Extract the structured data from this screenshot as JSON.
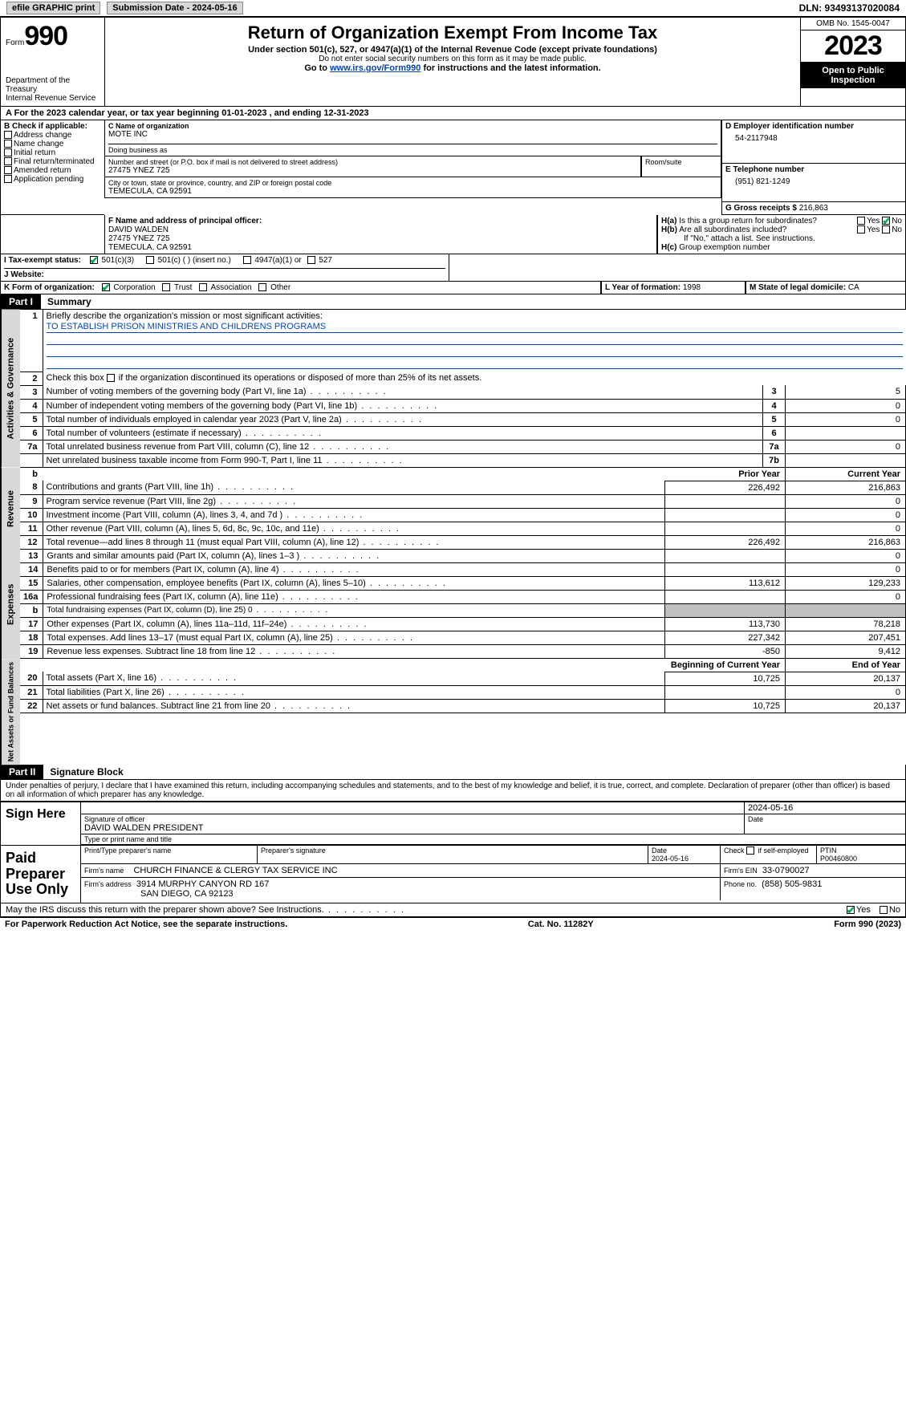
{
  "top": {
    "efile": "efile GRAPHIC print",
    "submission": "Submission Date - 2024-05-16",
    "dln": "DLN: 93493137020084"
  },
  "header": {
    "form_label": "Form",
    "form_number": "990",
    "dept": "Department of the Treasury",
    "irs": "Internal Revenue Service",
    "title": "Return of Organization Exempt From Income Tax",
    "subtitle": "Under section 501(c), 527, or 4947(a)(1) of the Internal Revenue Code (except private foundations)",
    "note1": "Do not enter social security numbers on this form as it may be made public.",
    "note2_pre": "Go to ",
    "note2_link": "www.irs.gov/Form990",
    "note2_post": " for instructions and the latest information.",
    "omb": "OMB No. 1545-0047",
    "year": "2023",
    "open": "Open to Public Inspection"
  },
  "A": {
    "text": "For the 2023 calendar year, or tax year beginning 01-01-2023    , and ending 12-31-2023"
  },
  "B": {
    "label": "B Check if applicable:",
    "items": [
      "Address change",
      "Name change",
      "Initial return",
      "Final return/terminated",
      "Amended return",
      "Application pending"
    ]
  },
  "C": {
    "name_label": "C Name of organization",
    "name": "MOTE INC",
    "dba_label": "Doing business as",
    "street_label": "Number and street (or P.O. box if mail is not delivered to street address)",
    "room_label": "Room/suite",
    "street": "27475 YNEZ 725",
    "city_label": "City or town, state or province, country, and ZIP or foreign postal code",
    "city": "TEMECULA, CA  92591"
  },
  "D": {
    "label": "D Employer identification number",
    "value": "54-2117948"
  },
  "E": {
    "label": "E Telephone number",
    "value": "(951) 821-1249"
  },
  "G": {
    "label": "G Gross receipts $",
    "value": "216,863"
  },
  "F": {
    "label": "F  Name and address of principal officer:",
    "name": "DAVID WALDEN",
    "street": "27475 YNEZ 725",
    "city": "TEMECULA, CA  92591"
  },
  "H": {
    "a_label": "H(a)  Is this a group return for subordinates?",
    "b_label": "H(b)  Are all subordinates included?",
    "b_note": "If \"No,\" attach a list. See instructions.",
    "c_label": "H(c)  Group exemption number"
  },
  "I": {
    "label": "I   Tax-exempt status:",
    "opts": [
      "501(c)(3)",
      "501(c) (  ) (insert no.)",
      "4947(a)(1) or",
      "527"
    ]
  },
  "J": {
    "label": "J   Website:"
  },
  "K": {
    "label": "K Form of organization:",
    "opts": [
      "Corporation",
      "Trust",
      "Association",
      "Other"
    ]
  },
  "L": {
    "label": "L Year of formation:",
    "value": "1998"
  },
  "M": {
    "label": "M State of legal domicile:",
    "value": "CA"
  },
  "part1": {
    "label": "Part I",
    "title": "Summary",
    "q1": "Briefly describe the organization's mission or most significant activities:",
    "mission": "TO ESTABLISH PRISON MINISTRIES AND CHILDRENS PROGRAMS",
    "q2": "Check this box      if the organization discontinued its operations or disposed of more than 25% of its net assets.",
    "lines_gov": [
      {
        "n": "3",
        "d": "Number of voting members of the governing body (Part VI, line 1a)",
        "box": "3",
        "v": "5"
      },
      {
        "n": "4",
        "d": "Number of independent voting members of the governing body (Part VI, line 1b)",
        "box": "4",
        "v": "0"
      },
      {
        "n": "5",
        "d": "Total number of individuals employed in calendar year 2023 (Part V, line 2a)",
        "box": "5",
        "v": "0"
      },
      {
        "n": "6",
        "d": "Total number of volunteers (estimate if necessary)",
        "box": "6",
        "v": ""
      },
      {
        "n": "7a",
        "d": "Total unrelated business revenue from Part VIII, column (C), line 12",
        "box": "7a",
        "v": "0"
      },
      {
        "n": "",
        "d": "Net unrelated business taxable income from Form 990-T, Part I, line 11",
        "box": "7b",
        "v": ""
      }
    ],
    "col_prior": "Prior Year",
    "col_current": "Current Year",
    "lines_rev": [
      {
        "n": "8",
        "d": "Contributions and grants (Part VIII, line 1h)",
        "p": "226,492",
        "c": "216,863"
      },
      {
        "n": "9",
        "d": "Program service revenue (Part VIII, line 2g)",
        "p": "",
        "c": "0"
      },
      {
        "n": "10",
        "d": "Investment income (Part VIII, column (A), lines 3, 4, and 7d )",
        "p": "",
        "c": "0"
      },
      {
        "n": "11",
        "d": "Other revenue (Part VIII, column (A), lines 5, 6d, 8c, 9c, 10c, and 11e)",
        "p": "",
        "c": "0"
      },
      {
        "n": "12",
        "d": "Total revenue—add lines 8 through 11 (must equal Part VIII, column (A), line 12)",
        "p": "226,492",
        "c": "216,863"
      }
    ],
    "lines_exp": [
      {
        "n": "13",
        "d": "Grants and similar amounts paid (Part IX, column (A), lines 1–3 )",
        "p": "",
        "c": "0"
      },
      {
        "n": "14",
        "d": "Benefits paid to or for members (Part IX, column (A), line 4)",
        "p": "",
        "c": "0"
      },
      {
        "n": "15",
        "d": "Salaries, other compensation, employee benefits (Part IX, column (A), lines 5–10)",
        "p": "113,612",
        "c": "129,233"
      },
      {
        "n": "16a",
        "d": "Professional fundraising fees (Part IX, column (A), line 11e)",
        "p": "",
        "c": "0"
      },
      {
        "n": "b",
        "d": "Total fundraising expenses (Part IX, column (D), line 25) 0",
        "p": "GREY",
        "c": "GREY"
      },
      {
        "n": "17",
        "d": "Other expenses (Part IX, column (A), lines 11a–11d, 11f–24e)",
        "p": "113,730",
        "c": "78,218"
      },
      {
        "n": "18",
        "d": "Total expenses. Add lines 13–17 (must equal Part IX, column (A), line 25)",
        "p": "227,342",
        "c": "207,451"
      },
      {
        "n": "19",
        "d": "Revenue less expenses. Subtract line 18 from line 12",
        "p": "-850",
        "c": "9,412"
      }
    ],
    "col_begin": "Beginning of Current Year",
    "col_end": "End of Year",
    "lines_net": [
      {
        "n": "20",
        "d": "Total assets (Part X, line 16)",
        "p": "10,725",
        "c": "20,137"
      },
      {
        "n": "21",
        "d": "Total liabilities (Part X, line 26)",
        "p": "",
        "c": "0"
      },
      {
        "n": "22",
        "d": "Net assets or fund balances. Subtract line 21 from line 20",
        "p": "10,725",
        "c": "20,137"
      }
    ],
    "vtab_gov": "Activities & Governance",
    "vtab_rev": "Revenue",
    "vtab_exp": "Expenses",
    "vtab_net": "Net Assets or Fund Balances"
  },
  "part2": {
    "label": "Part II",
    "title": "Signature Block",
    "decl": "Under penalties of perjury, I declare that I have examined this return, including accompanying schedules and statements, and to the best of my knowledge and belief, it is true, correct, and complete. Declaration of preparer (other than officer) is based on all information of which preparer has any knowledge.",
    "sign_here": "Sign Here",
    "sig_officer": "Signature of officer",
    "sig_name": "DAVID WALDEN  PRESIDENT",
    "sig_type": "Type or print name and title",
    "sig_date_label": "Date",
    "sig_date": "2024-05-16",
    "paid": "Paid Preparer Use Only",
    "prep_name_label": "Print/Type preparer's name",
    "prep_sig_label": "Preparer's signature",
    "prep_date_label": "Date",
    "prep_date": "2024-05-16",
    "prep_self": "Check       if self-employed",
    "ptin_label": "PTIN",
    "ptin": "P00460800",
    "firm_name_label": "Firm's name",
    "firm_name": "CHURCH FINANCE & CLERGY TAX SERVICE INC",
    "firm_ein_label": "Firm's EIN",
    "firm_ein": "33-0790027",
    "firm_addr_label": "Firm's address",
    "firm_addr1": "3914 MURPHY CANYON RD 167",
    "firm_addr2": "SAN DIEGO, CA  92123",
    "phone_label": "Phone no.",
    "phone": "(858) 505-9831",
    "discuss": "May the IRS discuss this return with the preparer shown above? See Instructions."
  },
  "footer": {
    "left": "For Paperwork Reduction Act Notice, see the separate instructions.",
    "mid": "Cat. No. 11282Y",
    "right": "Form 990 (2023)"
  }
}
